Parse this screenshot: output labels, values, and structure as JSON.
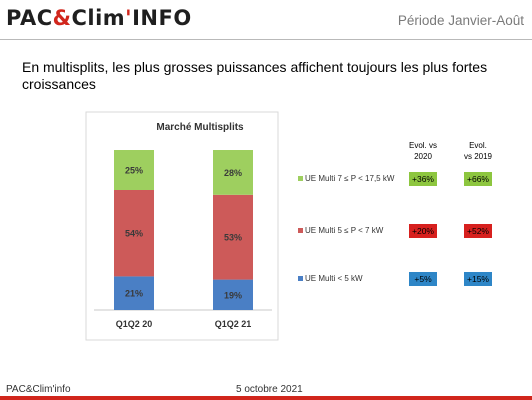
{
  "header": {
    "logo_part1": "PAC",
    "logo_part2": "&",
    "logo_part3": "Clim",
    "logo_part4": "'",
    "logo_part5": "INFO",
    "period": "Période Janvier-Août"
  },
  "headline": "En multisplits, les plus grosses puissances affichent toujours les plus fortes croissances",
  "chart_data": {
    "type": "bar",
    "stacked": true,
    "title": "Marché Multisplits",
    "categories": [
      "Q1Q2 20",
      "Q1Q2 21"
    ],
    "series": [
      {
        "name": "UE Multi < 5 kW",
        "values": [
          21,
          19
        ],
        "labels": [
          "21%",
          "19%"
        ],
        "color": "#4a7fc5"
      },
      {
        "name": "UE Multi 5 ≤ P < 7 kW",
        "values": [
          54,
          53
        ],
        "labels": [
          "54%",
          "53%"
        ],
        "color": "#cd5a59"
      },
      {
        "name": "UE Multi 7 ≤ P < 17,5 kW",
        "values": [
          25,
          28
        ],
        "labels": [
          "25%",
          "28%"
        ],
        "color": "#9ecf5f"
      }
    ],
    "ylim": [
      0,
      100
    ],
    "legend": "right",
    "evolution": {
      "headers": [
        {
          "line1": "Evol. vs",
          "line2": "2020"
        },
        {
          "line1": "Evol.",
          "line2": "vs 2019"
        }
      ],
      "rows": [
        {
          "series": "UE Multi 7 ≤ P < 17,5 kW",
          "vs2020": "+36%",
          "vs2019": "+66%",
          "color": "#8dc63f"
        },
        {
          "series": "UE Multi 5 ≤ P < 7 kW",
          "vs2020": "+20%",
          "vs2019": "+52%",
          "color": "#d7201e"
        },
        {
          "series": "UE Multi < 5 kW",
          "vs2020": "+5%",
          "vs2019": "+15%",
          "color": "#2e86c7"
        }
      ]
    }
  },
  "footer": {
    "source": "PAC&Clim'info",
    "date": "5 octobre 2021"
  }
}
